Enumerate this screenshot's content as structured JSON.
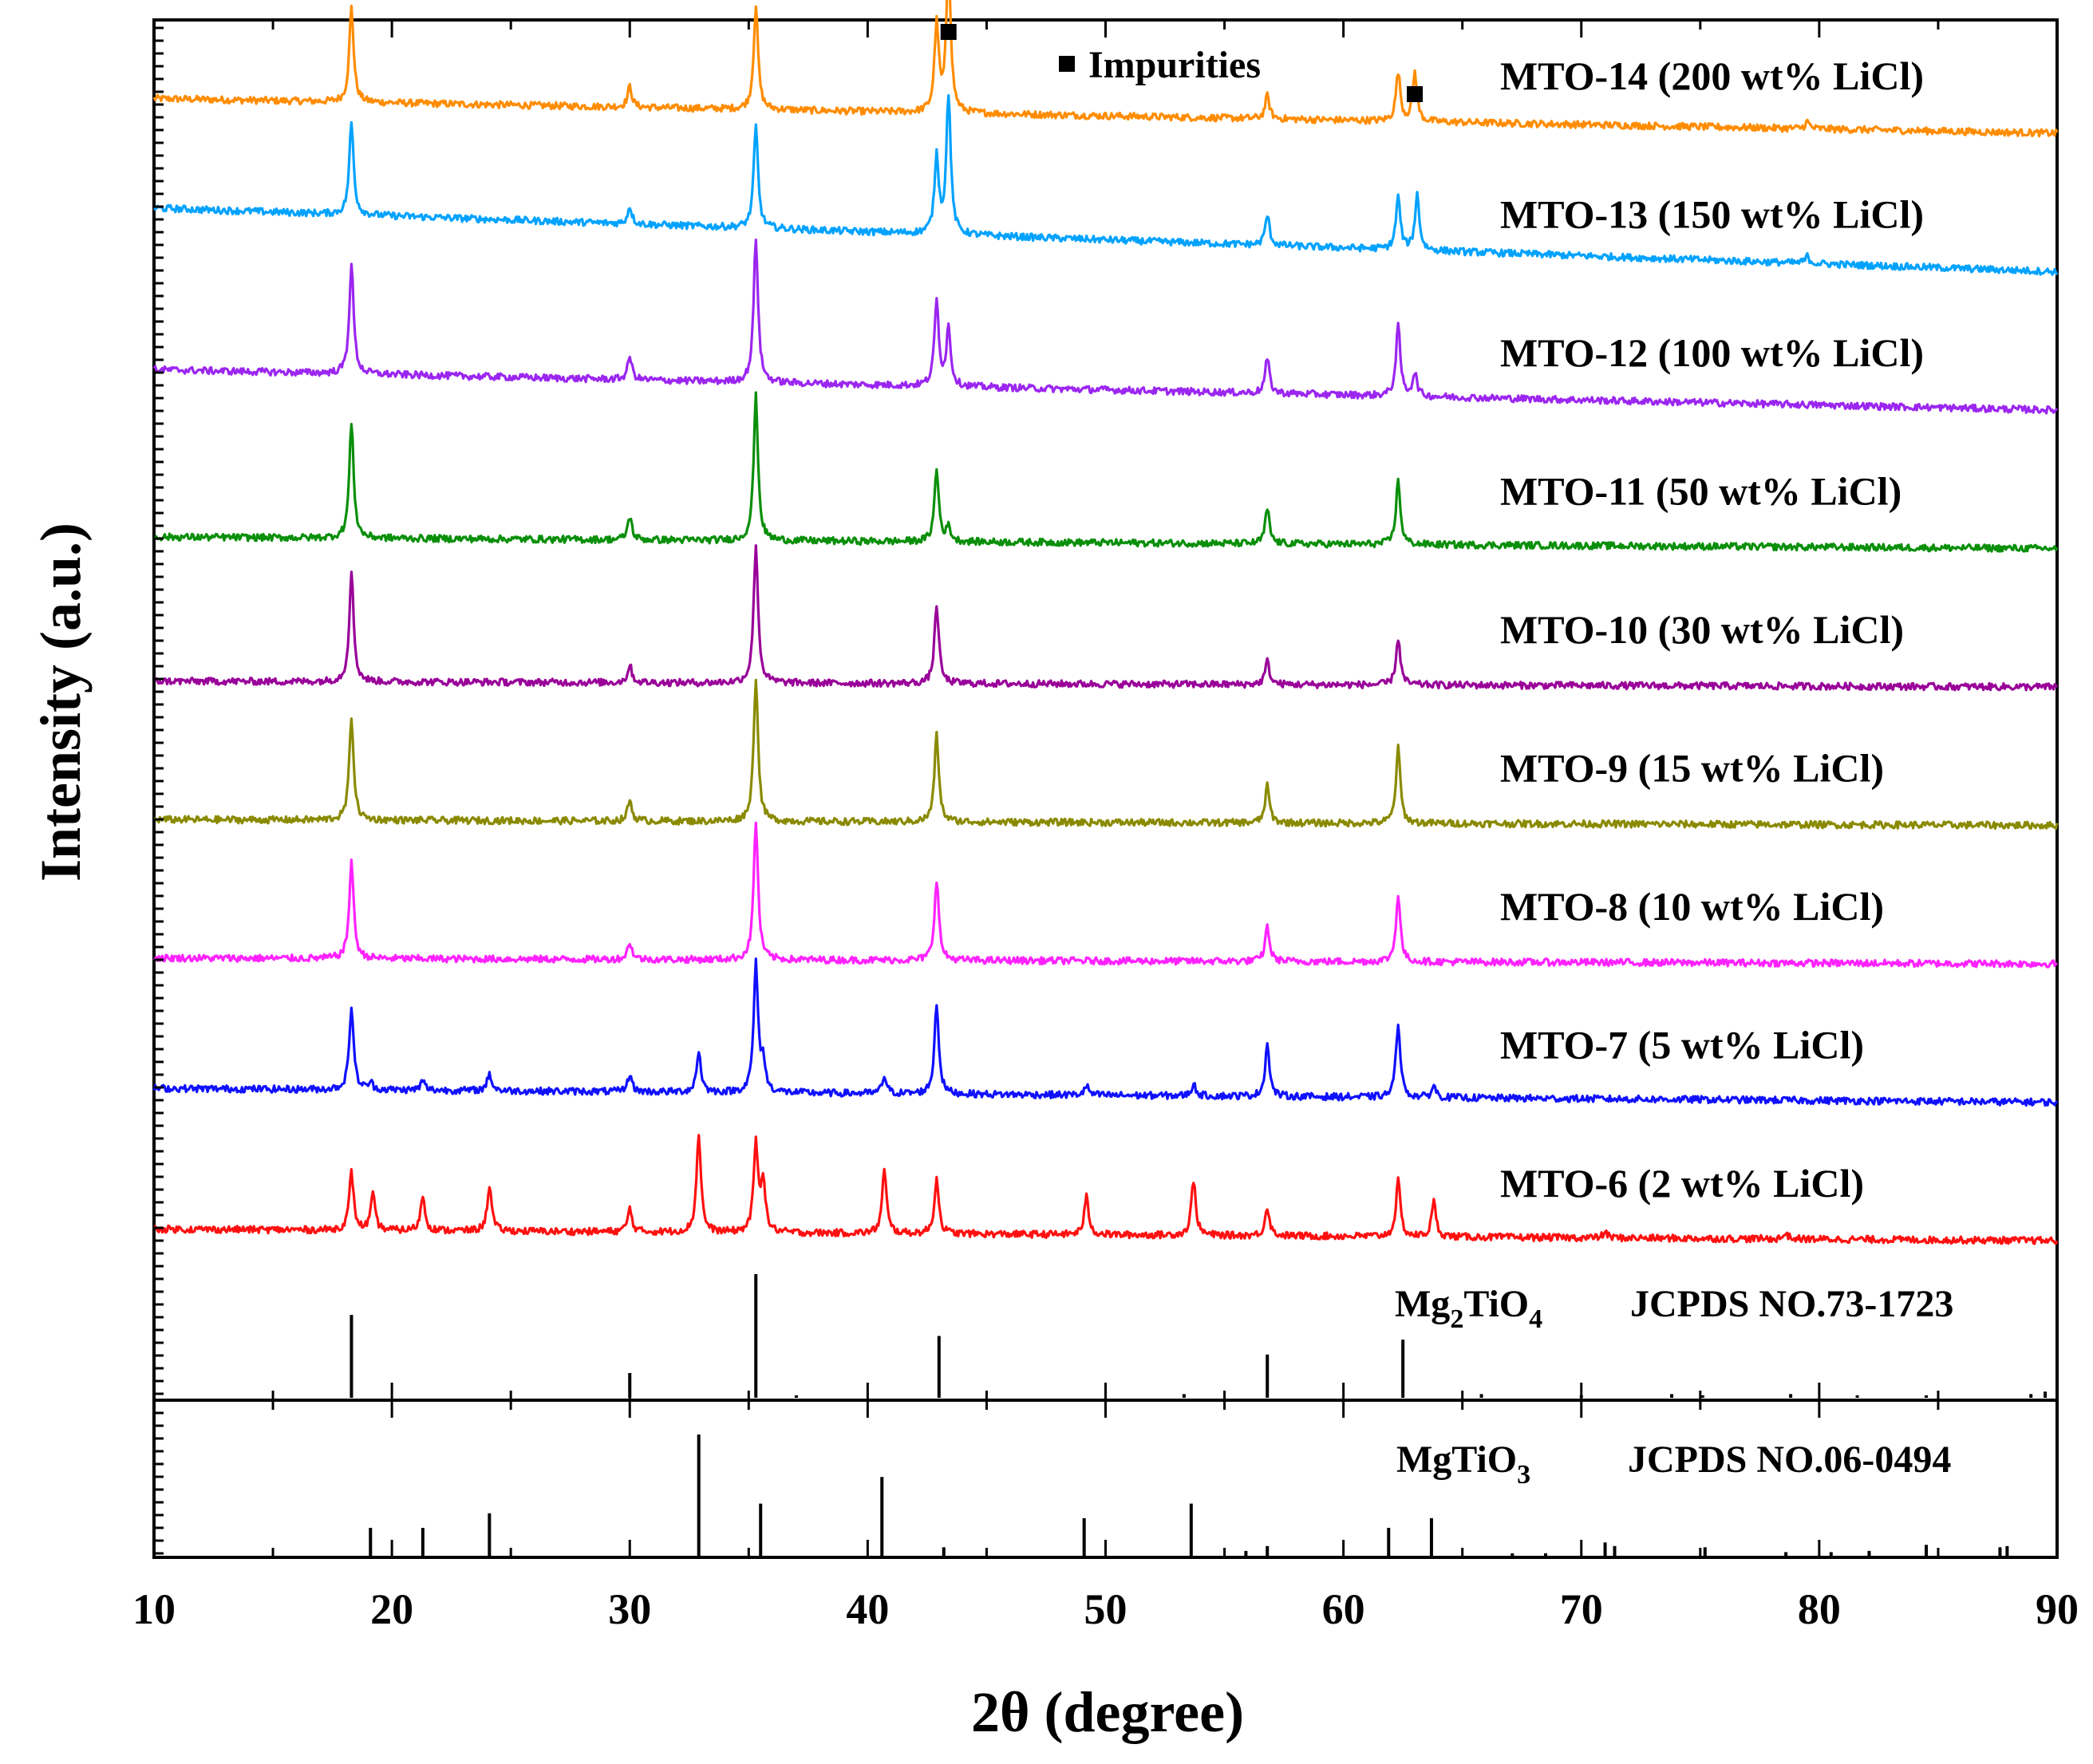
{
  "chart_data": {
    "type": "line",
    "title": "",
    "xlabel": "2θ (degree)",
    "ylabel": "Intensity (a.u.)",
    "xlim": [
      10,
      90
    ],
    "xticks": [
      "10",
      "20",
      "30",
      "40",
      "50",
      "60",
      "70",
      "80",
      "90"
    ],
    "grid": false,
    "legend": {
      "marker": "square",
      "label": "Impurities",
      "placement": "top-center"
    },
    "impurity_markers_at": [
      43.4,
      63.0
    ],
    "series": [
      {
        "name": "MTO-14",
        "label": "MTO-14 (200 wt% LiCl)",
        "color": "#ff8c00",
        "offset": 8,
        "baseline_start": 0.3,
        "baseline_end": 0.0,
        "peaks": [
          [
            18.3,
            0.82
          ],
          [
            30.0,
            0.18
          ],
          [
            35.3,
            0.9
          ],
          [
            42.9,
            0.75
          ],
          [
            43.4,
            1.3
          ],
          [
            56.8,
            0.2
          ],
          [
            62.3,
            0.42
          ],
          [
            63.0,
            0.42
          ],
          [
            79.5,
            0.06
          ]
        ]
      },
      {
        "name": "MTO-13",
        "label": "MTO-13 (150 wt% LiCl)",
        "color": "#00a2ff",
        "offset": 7,
        "baseline_start": 0.55,
        "baseline_end": 0.0,
        "peaks": [
          [
            18.3,
            0.8
          ],
          [
            30.0,
            0.15
          ],
          [
            35.3,
            0.88
          ],
          [
            42.9,
            0.66
          ],
          [
            43.4,
            1.2
          ],
          [
            56.8,
            0.26
          ],
          [
            62.3,
            0.45
          ],
          [
            63.1,
            0.48
          ],
          [
            79.5,
            0.06
          ]
        ]
      },
      {
        "name": "MTO-12",
        "label": "MTO-12 (100 wt% LiCl)",
        "color": "#9b26f0",
        "offset": 6,
        "baseline_start": 0.35,
        "baseline_end": 0.0,
        "peaks": [
          [
            18.3,
            0.95
          ],
          [
            30.0,
            0.2
          ],
          [
            35.3,
            1.25
          ],
          [
            42.9,
            0.73
          ],
          [
            43.4,
            0.5
          ],
          [
            56.8,
            0.3
          ],
          [
            62.3,
            0.6
          ],
          [
            63.0,
            0.2
          ]
        ]
      },
      {
        "name": "MTO-11",
        "label": "MTO-11 (50 wt% LiCl)",
        "color": "#0a8f0a",
        "offset": 5,
        "baseline_start": 0.1,
        "baseline_end": 0.0,
        "peaks": [
          [
            18.3,
            1.0
          ],
          [
            30.0,
            0.2
          ],
          [
            35.3,
            1.25
          ],
          [
            42.9,
            0.62
          ],
          [
            43.4,
            0.12
          ],
          [
            56.8,
            0.3
          ],
          [
            62.3,
            0.55
          ]
        ]
      },
      {
        "name": "MTO-10",
        "label": "MTO-10 (30 wt% LiCl)",
        "color": "#990099",
        "offset": 4,
        "baseline_start": 0.05,
        "baseline_end": 0.0,
        "peaks": [
          [
            18.3,
            0.95
          ],
          [
            30.0,
            0.15
          ],
          [
            35.3,
            1.2
          ],
          [
            42.9,
            0.68
          ],
          [
            56.8,
            0.2
          ],
          [
            62.3,
            0.4
          ]
        ]
      },
      {
        "name": "MTO-9",
        "label": "MTO-9  (15 wt% LiCl)",
        "color": "#8a8a00",
        "offset": 3,
        "baseline_start": 0.05,
        "baseline_end": 0.0,
        "peaks": [
          [
            18.3,
            0.9
          ],
          [
            30.0,
            0.18
          ],
          [
            35.3,
            1.25
          ],
          [
            42.9,
            0.75
          ],
          [
            56.8,
            0.32
          ],
          [
            62.3,
            0.65
          ]
        ]
      },
      {
        "name": "MTO-8",
        "label": "MTO-8  (10 wt% LiCl)",
        "color": "#ff22ff",
        "offset": 2,
        "baseline_start": 0.05,
        "baseline_end": 0.0,
        "peaks": [
          [
            18.3,
            0.85
          ],
          [
            30.0,
            0.15
          ],
          [
            35.3,
            1.2
          ],
          [
            42.9,
            0.7
          ],
          [
            56.8,
            0.3
          ],
          [
            62.3,
            0.58
          ]
        ]
      },
      {
        "name": "MTO-7",
        "label": "MTO-7  (5 wt% LiCl)",
        "color": "#1010ff",
        "offset": 1,
        "baseline_start": 0.12,
        "baseline_end": 0.0,
        "peaks": [
          [
            18.3,
            0.72
          ],
          [
            19.1,
            0.06
          ],
          [
            21.3,
            0.08
          ],
          [
            24.1,
            0.15
          ],
          [
            30.0,
            0.15
          ],
          [
            32.9,
            0.35
          ],
          [
            35.3,
            1.1
          ],
          [
            35.6,
            0.25
          ],
          [
            40.7,
            0.15
          ],
          [
            42.9,
            0.78
          ],
          [
            49.2,
            0.08
          ],
          [
            53.7,
            0.1
          ],
          [
            56.8,
            0.45
          ],
          [
            62.3,
            0.65
          ],
          [
            63.8,
            0.1
          ]
        ]
      },
      {
        "name": "MTO-6",
        "label": "MTO-6  (2 wt% LiCl)",
        "color": "#ff1010",
        "offset": 0,
        "baseline_start": 0.1,
        "baseline_end": 0.0,
        "peaks": [
          [
            18.3,
            0.5
          ],
          [
            19.2,
            0.3
          ],
          [
            21.3,
            0.3
          ],
          [
            24.1,
            0.4
          ],
          [
            30.0,
            0.2
          ],
          [
            32.9,
            0.85
          ],
          [
            35.3,
            0.75
          ],
          [
            35.6,
            0.45
          ],
          [
            40.7,
            0.55
          ],
          [
            42.9,
            0.48
          ],
          [
            49.2,
            0.33
          ],
          [
            53.7,
            0.48
          ],
          [
            56.8,
            0.25
          ],
          [
            62.3,
            0.48
          ],
          [
            63.8,
            0.3
          ],
          [
            71.0,
            0.05
          ],
          [
            78.6,
            0.05
          ]
        ]
      }
    ],
    "references": [
      {
        "name": "Mg2TiO4",
        "formula_base": "Mg",
        "formula_sub1": "2",
        "formula_mid": "TiO",
        "formula_sub2": "4",
        "card": "JCPDS NO.73-1723",
        "lines": [
          [
            18.3,
            67
          ],
          [
            30.0,
            20
          ],
          [
            35.3,
            100
          ],
          [
            37.0,
            2
          ],
          [
            43.0,
            50
          ],
          [
            53.3,
            3
          ],
          [
            56.8,
            35
          ],
          [
            62.5,
            47
          ],
          [
            65.8,
            3
          ],
          [
            70.0,
            2
          ],
          [
            73.8,
            3
          ],
          [
            75.1,
            2
          ],
          [
            78.8,
            3
          ],
          [
            81.6,
            2
          ],
          [
            84.5,
            2
          ],
          [
            88.9,
            3
          ],
          [
            89.5,
            5
          ]
        ]
      },
      {
        "name": "MgTiO3",
        "formula_base": "MgTiO",
        "formula_sub1": "3",
        "formula_mid": "",
        "formula_sub2": "",
        "card": "JCPDS NO.06-0494",
        "lines": [
          [
            19.1,
            23
          ],
          [
            21.3,
            23
          ],
          [
            24.1,
            35
          ],
          [
            32.9,
            100
          ],
          [
            35.5,
            43
          ],
          [
            40.6,
            65
          ],
          [
            43.2,
            7
          ],
          [
            49.1,
            31
          ],
          [
            53.6,
            43
          ],
          [
            55.9,
            4
          ],
          [
            56.8,
            8
          ],
          [
            61.9,
            23
          ],
          [
            63.7,
            31
          ],
          [
            67.1,
            2
          ],
          [
            68.5,
            2
          ],
          [
            71.0,
            11
          ],
          [
            71.4,
            8
          ],
          [
            75.2,
            7
          ],
          [
            78.6,
            3
          ],
          [
            80.5,
            3
          ],
          [
            82.1,
            4
          ],
          [
            84.5,
            9
          ],
          [
            87.6,
            7
          ],
          [
            87.9,
            8
          ]
        ]
      }
    ]
  }
}
